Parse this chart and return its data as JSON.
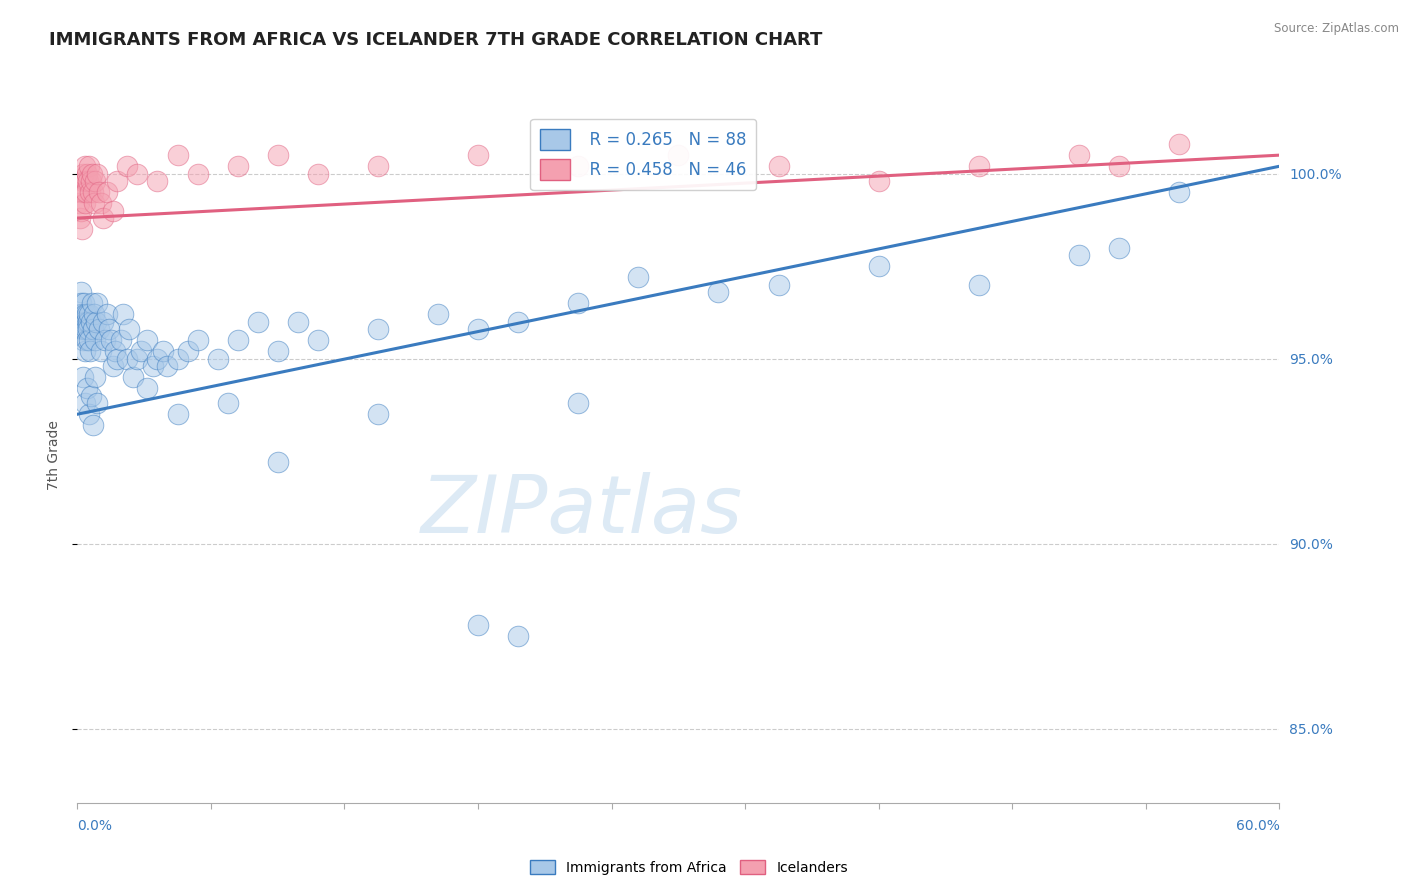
{
  "title": "IMMIGRANTS FROM AFRICA VS ICELANDER 7TH GRADE CORRELATION CHART",
  "source_text": "Source: ZipAtlas.com",
  "ylabel": "7th Grade",
  "xlim": [
    0.0,
    60.0
  ],
  "ylim": [
    83.0,
    101.8
  ],
  "yticks": [
    85.0,
    90.0,
    95.0,
    100.0
  ],
  "ytick_labels": [
    "85.0%",
    "90.0%",
    "95.0%",
    "100.0%"
  ],
  "legend_R1": "R = 0.265",
  "legend_N1": "N = 88",
  "legend_R2": "R = 0.458",
  "legend_N2": "N = 46",
  "legend_label1": "Immigrants from Africa",
  "legend_label2": "Icelanders",
  "color_blue": "#a8c8e8",
  "color_pink": "#f4a0b0",
  "color_blue_line": "#3a7bbf",
  "color_pink_line": "#e06080",
  "color_text_blue": "#3a7bbf",
  "color_text_dark": "#444444",
  "watermark_color": "#ddeaf5",
  "watermark": "ZIPatlas",
  "blue_scatter_x": [
    0.1,
    0.15,
    0.18,
    0.2,
    0.22,
    0.25,
    0.28,
    0.3,
    0.32,
    0.35,
    0.38,
    0.4,
    0.42,
    0.45,
    0.48,
    0.5,
    0.52,
    0.55,
    0.58,
    0.6,
    0.65,
    0.7,
    0.75,
    0.8,
    0.85,
    0.9,
    0.95,
    1.0,
    1.1,
    1.2,
    1.3,
    1.4,
    1.5,
    1.6,
    1.7,
    1.8,
    1.9,
    2.0,
    2.2,
    2.3,
    2.5,
    2.6,
    2.8,
    3.0,
    3.2,
    3.5,
    3.8,
    4.0,
    4.3,
    4.5,
    5.0,
    5.5,
    6.0,
    7.0,
    8.0,
    9.0,
    10.0,
    11.0,
    12.0,
    15.0,
    18.0,
    20.0,
    22.0,
    25.0,
    28.0,
    32.0,
    35.0,
    40.0,
    45.0,
    50.0,
    52.0,
    55.0
  ],
  "blue_scatter_y": [
    96.2,
    96.0,
    96.8,
    96.5,
    95.8,
    96.2,
    95.5,
    96.0,
    95.8,
    96.5,
    96.2,
    95.2,
    96.0,
    95.8,
    96.2,
    95.5,
    96.0,
    95.8,
    96.2,
    95.5,
    95.2,
    96.0,
    96.5,
    95.8,
    96.2,
    95.5,
    96.0,
    96.5,
    95.8,
    95.2,
    96.0,
    95.5,
    96.2,
    95.8,
    95.5,
    94.8,
    95.2,
    95.0,
    95.5,
    96.2,
    95.0,
    95.8,
    94.5,
    95.0,
    95.2,
    95.5,
    94.8,
    95.0,
    95.2,
    94.8,
    95.0,
    95.2,
    95.5,
    95.0,
    95.5,
    96.0,
    95.2,
    96.0,
    95.5,
    95.8,
    96.2,
    95.8,
    96.0,
    96.5,
    97.2,
    96.8,
    97.0,
    97.5,
    97.0,
    97.8,
    98.0,
    99.5
  ],
  "blue_outlier_x": [
    3.5,
    5.0,
    7.5,
    10.0,
    15.0,
    20.0,
    22.0,
    25.0,
    0.3,
    0.4,
    0.5,
    0.6,
    0.7,
    0.8,
    0.9,
    1.0
  ],
  "blue_outlier_y": [
    94.2,
    93.5,
    93.8,
    92.2,
    93.5,
    87.8,
    87.5,
    93.8,
    94.5,
    93.8,
    94.2,
    93.5,
    94.0,
    93.2,
    94.5,
    93.8
  ],
  "pink_scatter_x": [
    0.1,
    0.15,
    0.18,
    0.2,
    0.25,
    0.28,
    0.3,
    0.35,
    0.38,
    0.4,
    0.42,
    0.45,
    0.5,
    0.55,
    0.6,
    0.65,
    0.7,
    0.75,
    0.8,
    0.85,
    0.9,
    1.0,
    1.1,
    1.2,
    1.3,
    1.5,
    1.8,
    2.0,
    2.5,
    3.0,
    4.0,
    5.0,
    6.0,
    8.0,
    10.0,
    12.0,
    15.0,
    20.0,
    25.0,
    30.0,
    35.0,
    40.0,
    45.0,
    50.0,
    52.0,
    55.0
  ],
  "pink_scatter_y": [
    99.2,
    98.8,
    99.5,
    99.0,
    98.5,
    99.8,
    100.0,
    99.5,
    99.2,
    100.2,
    99.8,
    99.5,
    100.0,
    99.8,
    100.2,
    99.5,
    99.8,
    100.0,
    99.5,
    99.2,
    99.8,
    100.0,
    99.5,
    99.2,
    98.8,
    99.5,
    99.0,
    99.8,
    100.2,
    100.0,
    99.8,
    100.5,
    100.0,
    100.2,
    100.5,
    100.0,
    100.2,
    100.5,
    100.2,
    100.5,
    100.2,
    99.8,
    100.2,
    100.5,
    100.2,
    100.8
  ],
  "blue_line_x": [
    0.0,
    60.0
  ],
  "blue_line_y": [
    93.5,
    100.2
  ],
  "pink_line_x": [
    0.0,
    60.0
  ],
  "pink_line_y": [
    98.8,
    100.5
  ],
  "background_color": "#ffffff",
  "grid_color": "#cccccc",
  "title_fontsize": 13,
  "axis_label_fontsize": 10,
  "tick_fontsize": 10
}
